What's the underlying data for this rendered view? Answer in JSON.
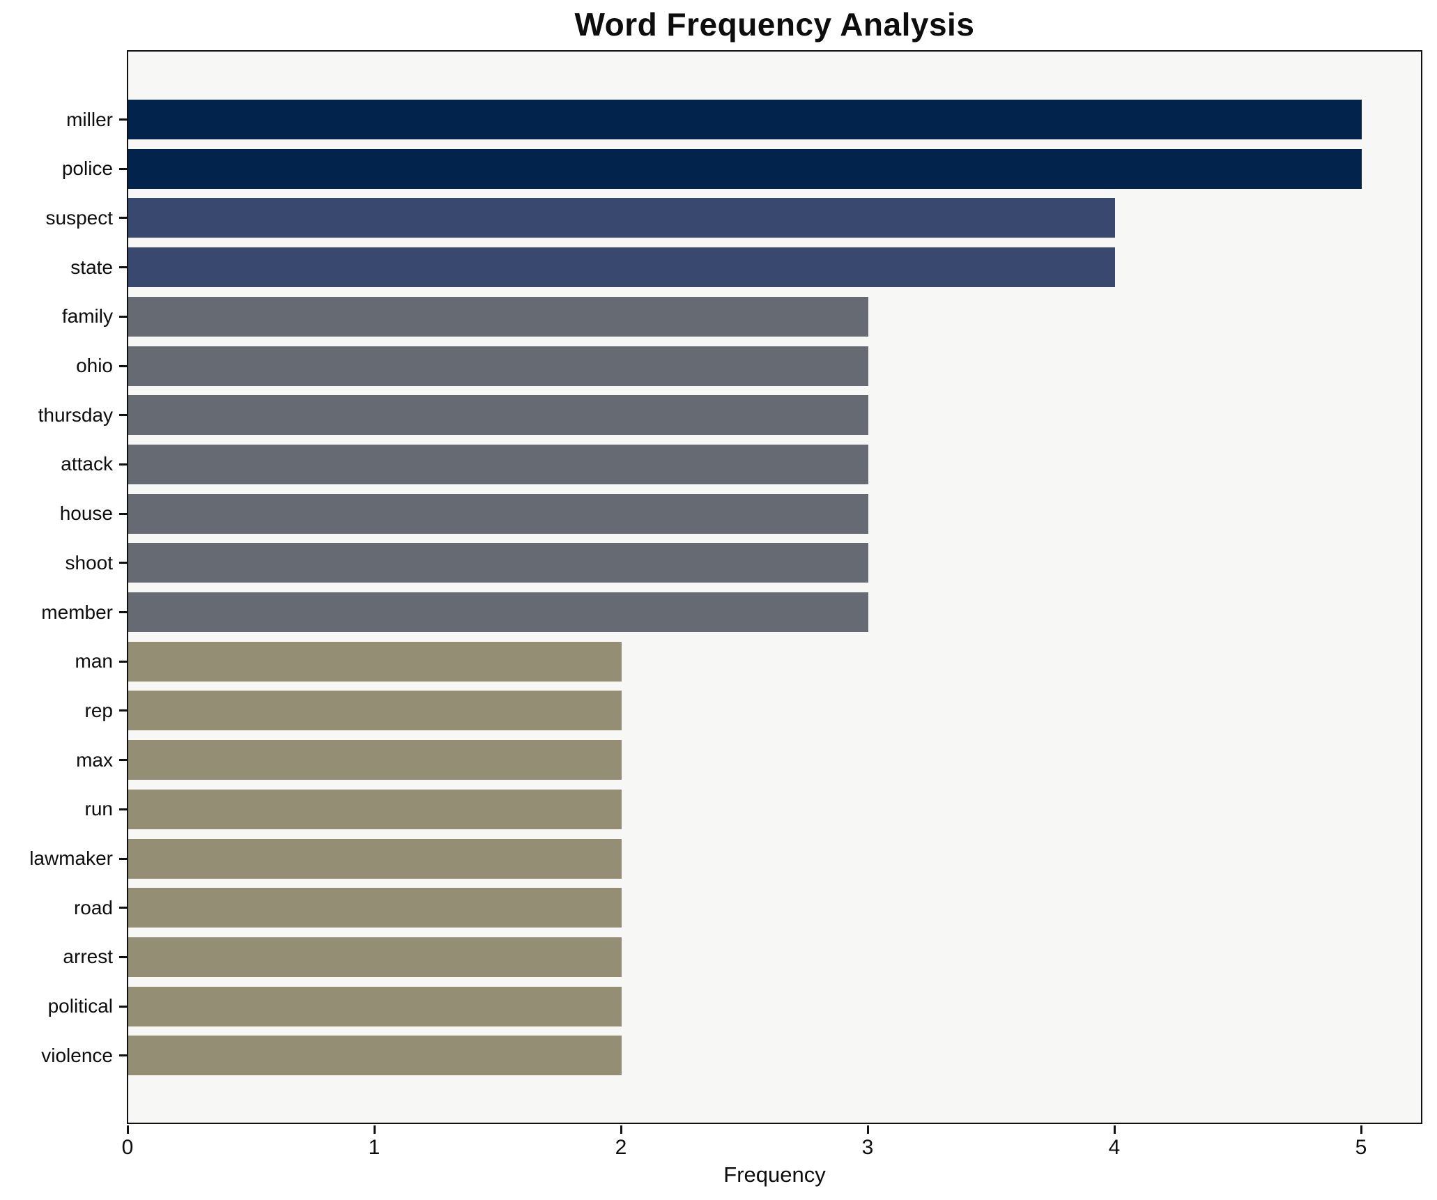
{
  "chart_data": {
    "type": "bar",
    "orientation": "horizontal",
    "title": "Word Frequency Analysis",
    "xlabel": "Frequency",
    "ylabel": "",
    "categories": [
      "miller",
      "police",
      "suspect",
      "state",
      "family",
      "ohio",
      "thursday",
      "attack",
      "house",
      "shoot",
      "member",
      "man",
      "rep",
      "max",
      "run",
      "lawmaker",
      "road",
      "arrest",
      "political",
      "violence"
    ],
    "values": [
      5,
      5,
      4,
      4,
      3,
      3,
      3,
      3,
      3,
      3,
      3,
      2,
      2,
      2,
      2,
      2,
      2,
      2,
      2,
      2
    ],
    "bar_colors": [
      "#02234c",
      "#02234c",
      "#38486e",
      "#38486e",
      "#666a72",
      "#666a72",
      "#666a72",
      "#666a72",
      "#666a72",
      "#666a72",
      "#666a72",
      "#948e74",
      "#948e74",
      "#948e74",
      "#948e74",
      "#948e74",
      "#948e74",
      "#948e74",
      "#948e74",
      "#948e74"
    ],
    "x_ticks": [
      0,
      1,
      2,
      3,
      4,
      5
    ],
    "xlim": [
      0,
      5.25
    ],
    "grid": false,
    "legend": "none",
    "plot_background": "#f7f7f6",
    "figure_background": "#ffffff",
    "spine_color": "#111111",
    "text_color": "#0d0d0d"
  }
}
